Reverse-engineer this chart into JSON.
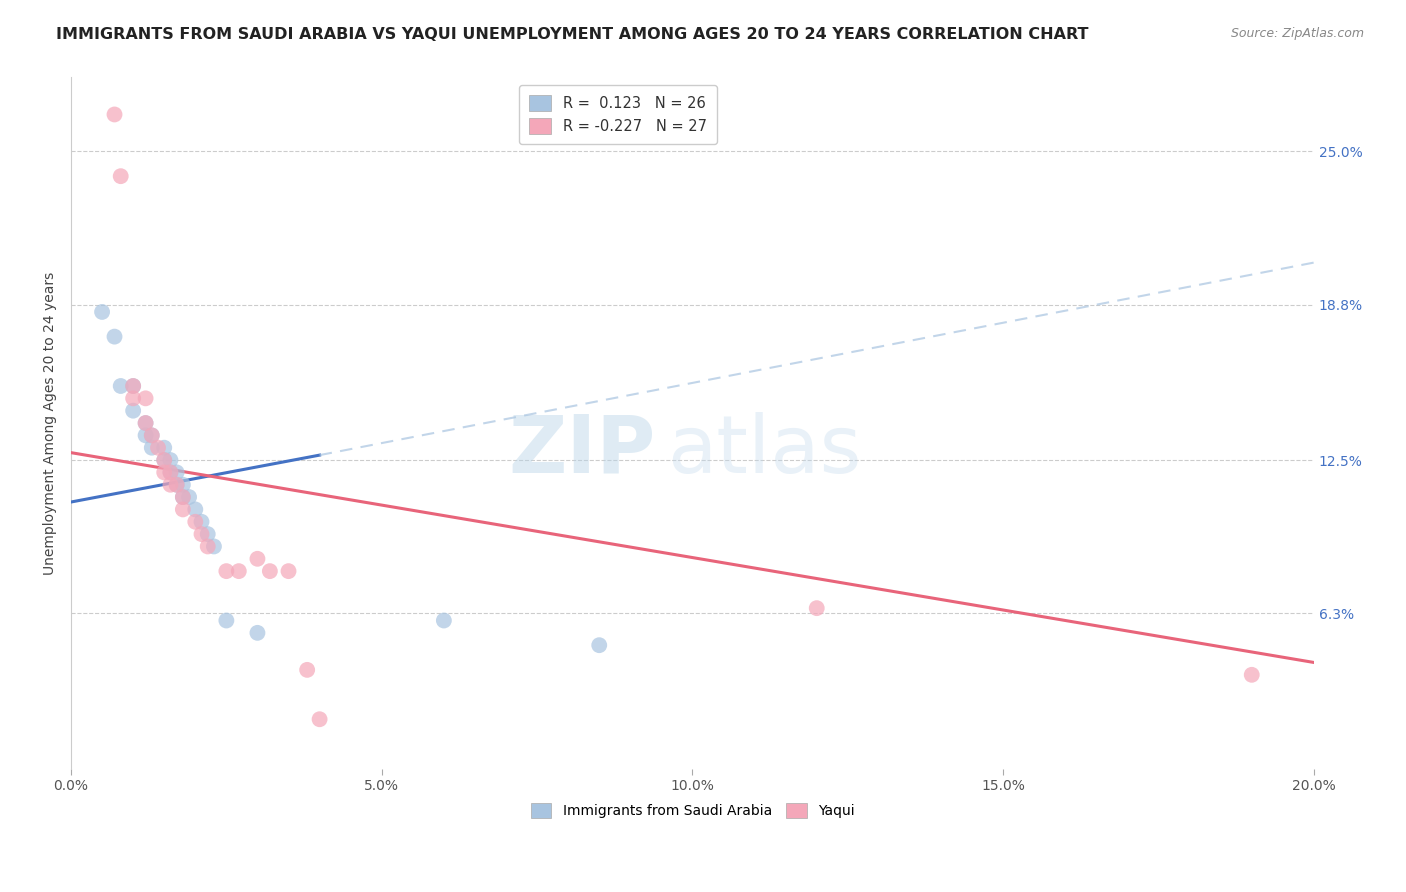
{
  "title": "IMMIGRANTS FROM SAUDI ARABIA VS YAQUI UNEMPLOYMENT AMONG AGES 20 TO 24 YEARS CORRELATION CHART",
  "source": "Source: ZipAtlas.com",
  "ylabel": "Unemployment Among Ages 20 to 24 years",
  "xlabel_ticks": [
    "0.0%",
    "5.0%",
    "10.0%",
    "15.0%",
    "20.0%"
  ],
  "xlabel_vals": [
    0.0,
    0.05,
    0.1,
    0.15,
    0.2
  ],
  "ylabel_right": [
    "25.0%",
    "18.8%",
    "12.5%",
    "6.3%"
  ],
  "ylabel_right_vals": [
    0.25,
    0.188,
    0.125,
    0.063
  ],
  "xlim": [
    0.0,
    0.2
  ],
  "ylim": [
    0.0,
    0.28
  ],
  "legend_entries": [
    {
      "label": "R =  0.123   N = 26",
      "color": "#a8c4e0"
    },
    {
      "label": "R = -0.227   N = 27",
      "color": "#f4a7b9"
    }
  ],
  "blue_scatter": [
    [
      0.005,
      0.185
    ],
    [
      0.007,
      0.175
    ],
    [
      0.008,
      0.155
    ],
    [
      0.01,
      0.155
    ],
    [
      0.01,
      0.145
    ],
    [
      0.012,
      0.14
    ],
    [
      0.012,
      0.135
    ],
    [
      0.013,
      0.135
    ],
    [
      0.013,
      0.13
    ],
    [
      0.015,
      0.13
    ],
    [
      0.015,
      0.125
    ],
    [
      0.016,
      0.125
    ],
    [
      0.016,
      0.12
    ],
    [
      0.017,
      0.12
    ],
    [
      0.017,
      0.115
    ],
    [
      0.018,
      0.115
    ],
    [
      0.018,
      0.11
    ],
    [
      0.019,
      0.11
    ],
    [
      0.02,
      0.105
    ],
    [
      0.021,
      0.1
    ],
    [
      0.022,
      0.095
    ],
    [
      0.023,
      0.09
    ],
    [
      0.025,
      0.06
    ],
    [
      0.03,
      0.055
    ],
    [
      0.06,
      0.06
    ],
    [
      0.085,
      0.05
    ]
  ],
  "pink_scatter": [
    [
      0.007,
      0.265
    ],
    [
      0.008,
      0.24
    ],
    [
      0.01,
      0.155
    ],
    [
      0.01,
      0.15
    ],
    [
      0.012,
      0.15
    ],
    [
      0.012,
      0.14
    ],
    [
      0.013,
      0.135
    ],
    [
      0.014,
      0.13
    ],
    [
      0.015,
      0.125
    ],
    [
      0.015,
      0.12
    ],
    [
      0.016,
      0.12
    ],
    [
      0.016,
      0.115
    ],
    [
      0.017,
      0.115
    ],
    [
      0.018,
      0.11
    ],
    [
      0.018,
      0.105
    ],
    [
      0.02,
      0.1
    ],
    [
      0.021,
      0.095
    ],
    [
      0.022,
      0.09
    ],
    [
      0.025,
      0.08
    ],
    [
      0.027,
      0.08
    ],
    [
      0.03,
      0.085
    ],
    [
      0.032,
      0.08
    ],
    [
      0.035,
      0.08
    ],
    [
      0.038,
      0.04
    ],
    [
      0.04,
      0.02
    ],
    [
      0.12,
      0.065
    ],
    [
      0.19,
      0.038
    ]
  ],
  "blue_line_solid": [
    [
      0.0,
      0.108
    ],
    [
      0.04,
      0.127
    ]
  ],
  "blue_line_dashed": [
    [
      0.04,
      0.127
    ],
    [
      0.2,
      0.205
    ]
  ],
  "pink_line": [
    [
      0.0,
      0.128
    ],
    [
      0.2,
      0.043
    ]
  ],
  "dot_color_blue": "#a8c4e0",
  "dot_color_pink": "#f4a7b9",
  "line_color_blue": "#4472c4",
  "line_color_blue_dashed": "#a8c4e0",
  "line_color_pink": "#e8647a",
  "watermark_zip": "ZIP",
  "watermark_atlas": "atlas",
  "title_fontsize": 11.5,
  "axis_fontsize": 10,
  "legend_fontsize": 10.5
}
